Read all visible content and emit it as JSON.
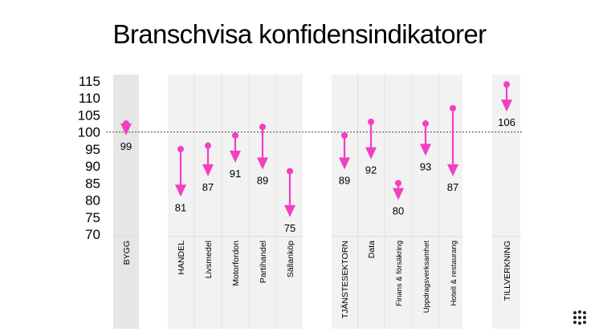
{
  "title": "Branschvisa konfidensindikatorer",
  "colors": {
    "arrow": "#f23fc1",
    "panel": "#f2f2f2",
    "panel_dark": "#e6e6e6",
    "reference_line": "#555555",
    "text": "#000000"
  },
  "chart_data": {
    "type": "arrow-dot",
    "title": "Branschvisa konfidensindikatorer",
    "ylim": [
      70,
      115
    ],
    "yticks": [
      70,
      75,
      80,
      85,
      90,
      95,
      100,
      105,
      110,
      115
    ],
    "reference_line": 100,
    "groups": [
      {
        "name": "BYGG",
        "items": [
          "BYGG"
        ]
      },
      {
        "name": "HANDEL",
        "items": [
          "HANDEL",
          "Livsmedel",
          "Motorfordon",
          "Partihandel",
          "Sällanköp"
        ]
      },
      {
        "name": "TJÄNSTESEKTORN",
        "items": [
          "TJÄNSTESEKTORN",
          "Data",
          "Finans & försäkring",
          "Uppdragsverksamhet",
          "Hotell & restaurang"
        ]
      },
      {
        "name": "TILLVERKNING",
        "items": [
          "TILLVERKNING"
        ]
      }
    ],
    "categories": [
      "BYGG",
      "HANDEL",
      "Livsmedel",
      "Motorfordon",
      "Partihandel",
      "Sällanköp",
      "TJÄNSTESEKTORN",
      "Data",
      "Finans & försäkring",
      "Uppdragsverksamhet",
      "Hotell & restaurang",
      "TILLVERKNING"
    ],
    "from": [
      102.5,
      95,
      96,
      99,
      101.5,
      88.5,
      99,
      103,
      85,
      102.5,
      107,
      114
    ],
    "to": [
      99,
      81,
      87,
      91,
      89,
      75,
      89,
      92,
      80,
      93,
      87,
      106
    ],
    "labels": [
      "99",
      "81",
      "87",
      "91",
      "89",
      "75",
      "89",
      "92",
      "80",
      "93",
      "87",
      "106"
    ]
  }
}
